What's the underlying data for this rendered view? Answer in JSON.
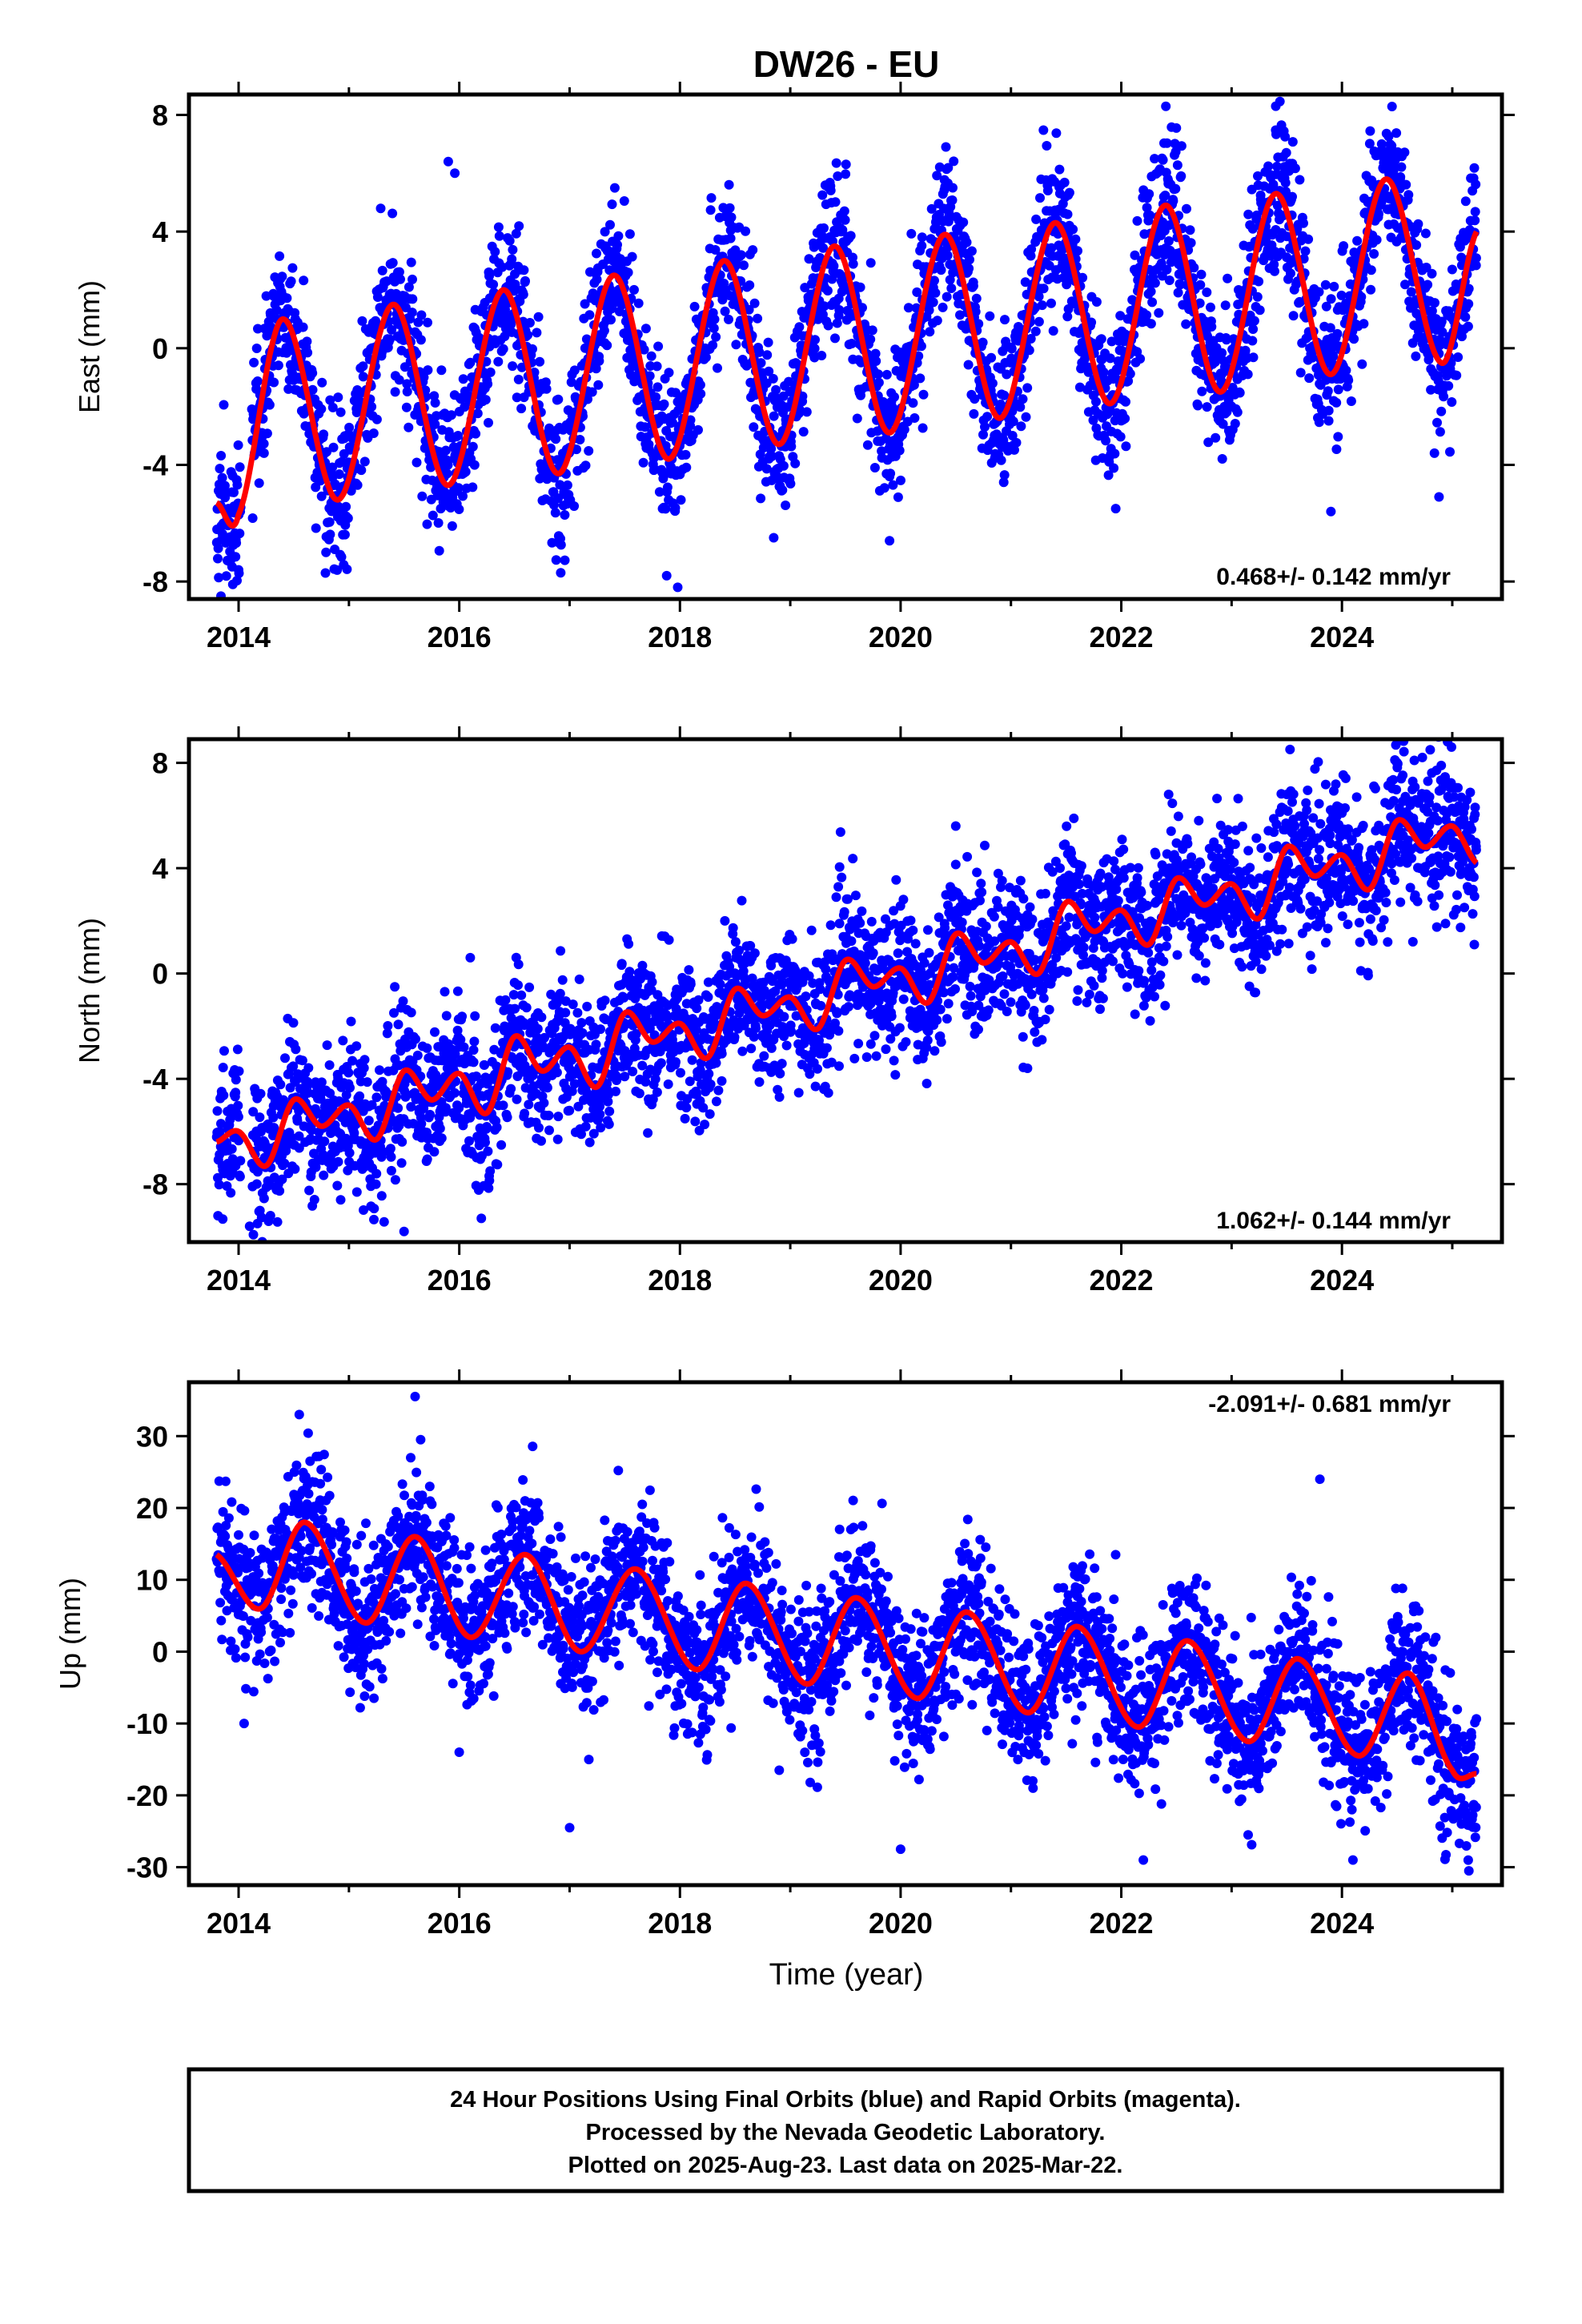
{
  "title": "DW26 - EU",
  "colors": {
    "points": "#0000ff",
    "model": "#ff0000",
    "frame": "#000000"
  },
  "xlabel": "Time (year)",
  "footer": {
    "line1": "24 Hour Positions Using Final Orbits (blue) and Rapid Orbits (magenta).",
    "line2": "Processed by the Nevada Geodetic Laboratory.",
    "line3": "Plotted on 2025-Aug-23. Last data on 2025-Mar-22."
  },
  "chart_data": [
    {
      "id": "east",
      "type": "scatter",
      "ylabel": "East (mm)",
      "rate_label": "0.468+/- 0.142 mm/yr",
      "xlim": [
        2013.55,
        2025.45
      ],
      "ylim": [
        -8.6,
        8.7
      ],
      "x_ticks": [
        2014,
        2016,
        2018,
        2020,
        2022,
        2024
      ],
      "y_ticks": [
        -8,
        -4,
        0,
        4,
        8
      ],
      "model_knots": {
        "x": [
          2013.8,
          2014.0,
          2014.4,
          2014.9,
          2015.4,
          2015.9,
          2016.4,
          2016.9,
          2017.4,
          2017.9,
          2018.4,
          2018.9,
          2019.4,
          2019.9,
          2020.4,
          2020.9,
          2021.4,
          2021.9,
          2022.4,
          2022.9,
          2023.4,
          2023.9,
          2024.4,
          2024.9,
          2025.22
        ],
        "y": [
          -5.3,
          -5.7,
          1.0,
          -5.2,
          1.5,
          -4.7,
          2.0,
          -4.3,
          2.5,
          -3.8,
          3.0,
          -3.3,
          3.5,
          -2.9,
          3.9,
          -2.4,
          4.3,
          -1.9,
          4.9,
          -1.5,
          5.3,
          -0.9,
          5.8,
          -0.5,
          4.0
        ]
      },
      "scatter_spread": 1.25,
      "outliers": [
        [
          2013.84,
          -8.5
        ],
        [
          2014.0,
          -7.6
        ],
        [
          2015.9,
          6.4
        ],
        [
          2015.96,
          6.0
        ],
        [
          2016.92,
          -7.7
        ],
        [
          2017.88,
          -7.8
        ],
        [
          2017.98,
          -8.2
        ],
        [
          2018.85,
          -6.5
        ],
        [
          2019.9,
          -6.6
        ],
        [
          2021.95,
          -5.5
        ],
        [
          2023.4,
          8.3
        ],
        [
          2023.9,
          -5.6
        ],
        [
          2024.88,
          -5.1
        ]
      ],
      "samples_per_year": 300
    },
    {
      "id": "north",
      "type": "scatter",
      "ylabel": "North (mm)",
      "rate_label": "1.062+/- 0.144 mm/yr",
      "xlim": [
        2013.55,
        2025.45
      ],
      "ylim": [
        -10.2,
        8.9
      ],
      "x_ticks": [
        2014,
        2016,
        2018,
        2020,
        2022,
        2024
      ],
      "y_ticks": [
        -8,
        -4,
        0,
        4,
        8
      ],
      "model_knots": {
        "x": [
          2013.8,
          2014.0,
          2014.25,
          2014.5,
          2014.75,
          2015.0,
          2015.25,
          2015.5,
          2015.75,
          2016.0,
          2016.25,
          2016.5,
          2016.75,
          2017.0,
          2017.25,
          2017.5,
          2017.75,
          2018.0,
          2018.25,
          2018.5,
          2018.75,
          2019.0,
          2019.25,
          2019.5,
          2019.75,
          2020.0,
          2020.25,
          2020.5,
          2020.75,
          2021.0,
          2021.25,
          2021.5,
          2021.75,
          2022.0,
          2022.25,
          2022.5,
          2022.75,
          2023.0,
          2023.25,
          2023.5,
          2023.75,
          2024.0,
          2024.25,
          2024.5,
          2024.75,
          2025.0,
          2025.22
        ],
        "y": [
          -6.4,
          -6.0,
          -7.3,
          -4.8,
          -5.8,
          -5.0,
          -6.3,
          -3.7,
          -4.8,
          -3.8,
          -5.3,
          -2.4,
          -3.7,
          -2.8,
          -4.3,
          -1.5,
          -2.6,
          -1.9,
          -3.2,
          -0.6,
          -1.6,
          -0.9,
          -2.1,
          0.5,
          -0.5,
          0.2,
          -1.1,
          1.5,
          0.4,
          1.2,
          0.0,
          2.7,
          1.6,
          2.4,
          1.1,
          3.6,
          2.6,
          3.4,
          2.1,
          4.8,
          3.7,
          4.5,
          3.2,
          5.8,
          4.8,
          5.6,
          4.2
        ]
      },
      "scatter_spread": 1.35,
      "outliers": [
        [
          2014.1,
          -9.6
        ],
        [
          2015.5,
          -9.8
        ],
        [
          2016.1,
          0.6
        ],
        [
          2016.2,
          -9.3
        ],
        [
          2018.15,
          -4.6
        ],
        [
          2020.5,
          5.6
        ],
        [
          2021.15,
          -3.6
        ],
        [
          2023.5,
          6.8
        ],
        [
          2024.8,
          8.5
        ],
        [
          2024.9,
          7.9
        ],
        [
          2025.2,
          1.1
        ]
      ],
      "samples_per_year": 300
    },
    {
      "id": "up",
      "type": "scatter",
      "ylabel": "Up (mm)",
      "rate_label": "-2.091+/- 0.681 mm/yr",
      "xlim": [
        2013.55,
        2025.45
      ],
      "ylim": [
        -32.5,
        37.5
      ],
      "x_ticks": [
        2014,
        2016,
        2018,
        2020,
        2022,
        2024
      ],
      "y_ticks": [
        -30,
        -20,
        -10,
        0,
        10,
        20,
        30
      ],
      "model_knots": {
        "x": [
          2013.8,
          2014.2,
          2014.6,
          2015.15,
          2015.6,
          2016.1,
          2016.6,
          2017.1,
          2017.6,
          2018.15,
          2018.6,
          2019.15,
          2019.6,
          2020.15,
          2020.6,
          2021.15,
          2021.6,
          2022.15,
          2022.6,
          2023.15,
          2023.6,
          2024.15,
          2024.6,
          2025.0,
          2025.22
        ],
        "y": [
          13.5,
          6.0,
          18.0,
          4.0,
          16.0,
          2.0,
          13.5,
          0.0,
          11.5,
          -2.5,
          9.5,
          -4.5,
          7.5,
          -6.5,
          5.5,
          -8.5,
          3.5,
          -10.5,
          1.5,
          -12.5,
          -1.0,
          -14.5,
          -3.0,
          -16.5,
          -17.0
        ]
      },
      "scatter_spread": 5.2,
      "outliers": [
        [
          2014.05,
          -10.0
        ],
        [
          2014.55,
          33.0
        ],
        [
          2015.6,
          35.5
        ],
        [
          2015.65,
          29.5
        ],
        [
          2016.0,
          -14.0
        ],
        [
          2017.0,
          -24.5
        ],
        [
          2018.9,
          -16.5
        ],
        [
          2020.0,
          -27.5
        ],
        [
          2021.2,
          -19.0
        ],
        [
          2022.2,
          -29.0
        ],
        [
          2023.15,
          -25.5
        ],
        [
          2023.8,
          24.0
        ],
        [
          2024.1,
          -29.0
        ],
        [
          2025.15,
          -30.5
        ]
      ],
      "samples_per_year": 300
    }
  ]
}
